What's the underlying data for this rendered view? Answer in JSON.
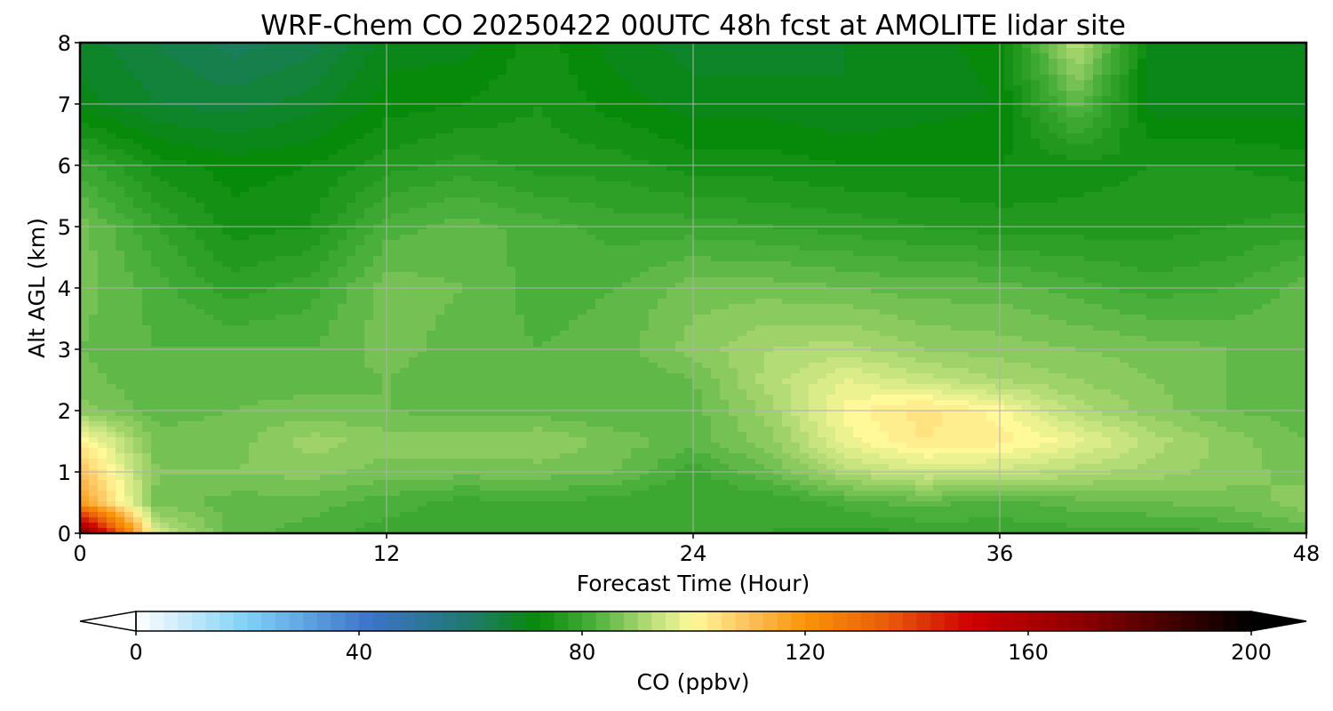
{
  "chart_data": {
    "type": "heatmap",
    "title": "WRF-Chem CO  20250422 00UTC 48h fcst at AMOLITE lidar site",
    "xlabel": "Forecast Time (Hour)",
    "ylabel": "Alt AGL (km)",
    "xlim": [
      0,
      48
    ],
    "ylim": [
      0,
      8
    ],
    "xticks": [
      "0",
      "12",
      "24",
      "36",
      "48"
    ],
    "yticks": [
      "0",
      "1",
      "2",
      "3",
      "4",
      "5",
      "6",
      "7",
      "8"
    ],
    "grid": true,
    "colorbar": {
      "label": "CO  (ppbv)",
      "range": [
        0,
        200
      ],
      "ticks": [
        "0",
        "40",
        "80",
        "120",
        "160",
        "200"
      ],
      "extend": "both",
      "orientation": "horizontal",
      "colors": [
        {
          "v": 0,
          "c": "#ffffff"
        },
        {
          "v": 20,
          "c": "#7fd0f5"
        },
        {
          "v": 42,
          "c": "#3d72c9"
        },
        {
          "v": 60,
          "c": "#1f7a6b"
        },
        {
          "v": 72,
          "c": "#078a0a"
        },
        {
          "v": 82,
          "c": "#4aaf3b"
        },
        {
          "v": 93,
          "c": "#bfe07c"
        },
        {
          "v": 100,
          "c": "#fff99a"
        },
        {
          "v": 110,
          "c": "#fcc15a"
        },
        {
          "v": 120,
          "c": "#f99408"
        },
        {
          "v": 135,
          "c": "#e85b0b"
        },
        {
          "v": 150,
          "c": "#cc0000"
        },
        {
          "v": 170,
          "c": "#8b0000"
        },
        {
          "v": 200,
          "c": "#000000"
        }
      ]
    },
    "time_hours": [
      0,
      3,
      6,
      9,
      12,
      15,
      18,
      21,
      24,
      27,
      30,
      33,
      36,
      39,
      42,
      45,
      48
    ],
    "altitude_km": [
      0,
      0.5,
      1,
      1.5,
      2,
      2.5,
      3,
      4,
      5,
      6,
      7,
      8
    ],
    "values_ppbv": [
      [
        175,
        95,
        84,
        82,
        80,
        80,
        81,
        80,
        80,
        79,
        78,
        79,
        80,
        80,
        80,
        81,
        84
      ],
      [
        118,
        86,
        84,
        84,
        82,
        80,
        81,
        80,
        79,
        79,
        82,
        84,
        82,
        84,
        85,
        86,
        88
      ],
      [
        110,
        87,
        87,
        88,
        86,
        86,
        86,
        85,
        80,
        85,
        92,
        95,
        94,
        92,
        90,
        88,
        86
      ],
      [
        102,
        86,
        86,
        90,
        88,
        88,
        89,
        86,
        84,
        88,
        98,
        103,
        102,
        98,
        92,
        88,
        85
      ],
      [
        88,
        84,
        85,
        86,
        85,
        84,
        84,
        83,
        84,
        90,
        100,
        104,
        100,
        92,
        88,
        85,
        84
      ],
      [
        86,
        83,
        84,
        84,
        85,
        83,
        83,
        83,
        85,
        92,
        97,
        94,
        91,
        89,
        87,
        85,
        84
      ],
      [
        85,
        83,
        83,
        83,
        86,
        84,
        83,
        84,
        88,
        91,
        92,
        89,
        88,
        87,
        86,
        85,
        84
      ],
      [
        86,
        82,
        78,
        80,
        86,
        85,
        82,
        83,
        86,
        86,
        85,
        84,
        84,
        82,
        80,
        81,
        84
      ],
      [
        86,
        79,
        74,
        75,
        82,
        84,
        82,
        80,
        80,
        79,
        78,
        77,
        76,
        76,
        76,
        77,
        78
      ],
      [
        80,
        74,
        72,
        73,
        76,
        78,
        76,
        76,
        74,
        74,
        73,
        73,
        73,
        74,
        75,
        75,
        74
      ],
      [
        70,
        67,
        66,
        68,
        72,
        73,
        75,
        72,
        70,
        70,
        69,
        70,
        71,
        84,
        70,
        70,
        70
      ],
      [
        68,
        65,
        62,
        64,
        70,
        70,
        74,
        70,
        68,
        68,
        69,
        70,
        72,
        93,
        70,
        70,
        70
      ]
    ]
  }
}
